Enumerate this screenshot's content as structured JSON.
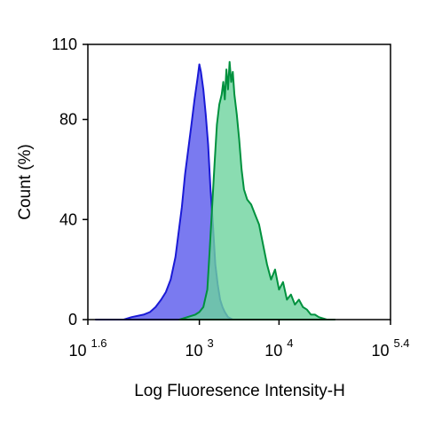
{
  "chart_data": {
    "type": "area",
    "title": "",
    "xlabel": "Log Fluoresence Intensity-H",
    "ylabel": "Count  (%)",
    "x_scale": "log10",
    "xlim": [
      1.6,
      5.4
    ],
    "ylim": [
      0,
      110
    ],
    "grid": false,
    "legend": "none",
    "x_ticks": [
      {
        "base": "10",
        "exp": "1.6"
      },
      {
        "base": "10",
        "exp": "3"
      },
      {
        "base": "10",
        "exp": "4"
      },
      {
        "base": "10",
        "exp": "5.4"
      }
    ],
    "x_tick_values": [
      1.6,
      3,
      4,
      5.4
    ],
    "y_ticks": [
      "0",
      "40",
      "80",
      "110"
    ],
    "y_tick_values": [
      0,
      40,
      80,
      110
    ],
    "series": [
      {
        "fill": "#7a7af0",
        "stroke": "#1a1ad6",
        "log_x": [
          1.7,
          1.85,
          2.05,
          2.15,
          2.3,
          2.38,
          2.45,
          2.52,
          2.58,
          2.64,
          2.7,
          2.74,
          2.78,
          2.82,
          2.86,
          2.9,
          2.94,
          2.98,
          3.0,
          3.02,
          3.05,
          3.08,
          3.11,
          3.14,
          3.17,
          3.2,
          3.23,
          3.26,
          3.29,
          3.32,
          3.36,
          3.42,
          3.5
        ],
        "values": [
          0,
          0,
          0,
          1,
          2,
          3,
          5,
          8,
          11,
          16,
          25,
          35,
          45,
          58,
          68,
          78,
          88,
          97,
          102,
          99,
          92,
          82,
          70,
          52,
          38,
          22,
          14,
          8,
          5,
          3,
          1,
          0,
          0
        ]
      },
      {
        "fill": "#6dd39d",
        "stroke": "#00913e",
        "log_x": [
          2.75,
          2.85,
          2.95,
          3.0,
          3.05,
          3.1,
          3.13,
          3.16,
          3.19,
          3.22,
          3.25,
          3.28,
          3.3,
          3.32,
          3.34,
          3.36,
          3.38,
          3.4,
          3.42,
          3.44,
          3.47,
          3.5,
          3.53,
          3.56,
          3.6,
          3.65,
          3.7,
          3.75,
          3.8,
          3.85,
          3.9,
          3.95,
          4.0,
          4.05,
          4.1,
          4.15,
          4.2,
          4.25,
          4.3,
          4.35,
          4.4,
          4.45,
          4.5,
          4.6,
          4.7
        ],
        "values": [
          0,
          1,
          2,
          3,
          5,
          12,
          28,
          45,
          62,
          78,
          86,
          90,
          95,
          88,
          100,
          92,
          103,
          95,
          99,
          90,
          82,
          72,
          60,
          52,
          48,
          46,
          42,
          38,
          30,
          22,
          16,
          20,
          12,
          15,
          8,
          10,
          6,
          8,
          5,
          4,
          2,
          2,
          1,
          0,
          0
        ]
      }
    ]
  }
}
